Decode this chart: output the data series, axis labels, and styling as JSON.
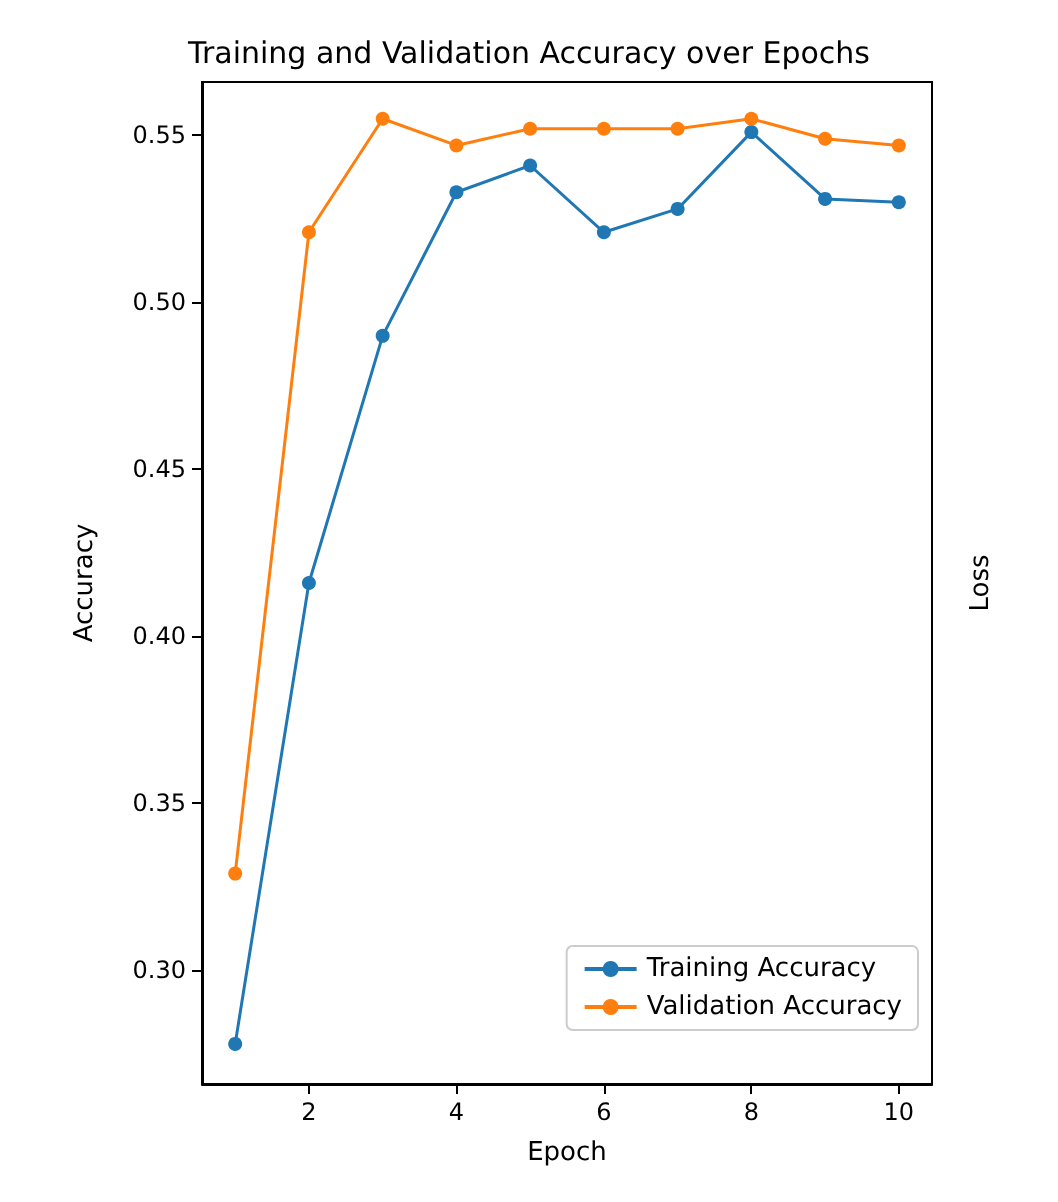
{
  "chart_data": {
    "type": "line",
    "title": "Training and Validation Accuracy over Epochs",
    "xlabel": "Epoch",
    "ylabel": "Accuracy",
    "y2label": "Loss",
    "x": [
      1,
      2,
      3,
      4,
      5,
      6,
      7,
      8,
      9,
      10
    ],
    "series": [
      {
        "name": "Training Accuracy",
        "color": "#1f77b4",
        "values": [
          0.278,
          0.416,
          0.49,
          0.533,
          0.541,
          0.521,
          0.528,
          0.551,
          0.531,
          0.53
        ]
      },
      {
        "name": "Validation Accuracy",
        "color": "#ff7f0e",
        "values": [
          0.329,
          0.521,
          0.555,
          0.547,
          0.552,
          0.552,
          0.552,
          0.555,
          0.549,
          0.547
        ]
      }
    ],
    "xlim": [
      0.55,
      10.45
    ],
    "xticks": [
      2,
      4,
      6,
      8,
      10
    ],
    "ylim": [
      0.266,
      0.566
    ],
    "yticks": [
      {
        "value": 0.3,
        "label": "0.30"
      },
      0.35,
      {
        "value": 0.4,
        "label": "0.40"
      },
      0.45,
      {
        "value": 0.5,
        "label": "0.50"
      },
      0.55
    ],
    "legend": "bottom right",
    "marker": "circle",
    "line_style": "solid",
    "grid": false
  }
}
